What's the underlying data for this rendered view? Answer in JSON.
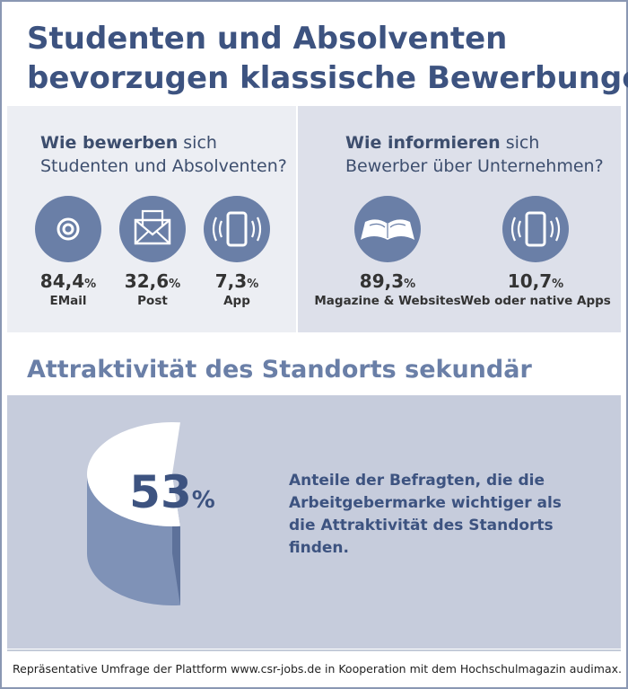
{
  "header": {
    "title_lines": [
      "Studenten und Absolventen",
      "bevorzugen klassische Bewerbungen"
    ]
  },
  "left": {
    "heading_bold": "Wie bewerben",
    "heading_rest": "sich",
    "heading_line2": "Studenten und Absolventen?",
    "stats": [
      {
        "value": "84,4",
        "unit": "%",
        "label": "EMail"
      },
      {
        "value": "32,6",
        "unit": "%",
        "label": "Post"
      },
      {
        "value": "7,3",
        "unit": "%",
        "label": "App"
      }
    ]
  },
  "right": {
    "heading_bold": "Wie informieren",
    "heading_rest": "sich",
    "heading_line2": "Bewerber über Unternehmen?",
    "stats": [
      {
        "value": "89,3",
        "unit": "%",
        "label": "Magazine & Websites"
      },
      {
        "value": "10,7",
        "unit": "%",
        "label": "Web oder native Apps"
      }
    ]
  },
  "section": {
    "title": "Attraktivität des Standorts sekundär",
    "pie_value": 53,
    "pie_unit": "%",
    "text_lines": [
      "Anteile der Befragten, die die",
      "Arbeitgebermarke wichtiger als",
      "die Attraktivität des Standorts",
      "finden."
    ]
  },
  "footer": "Repräsentative Umfrage der Plattform www.csr-jobs.de in Kooperation mit dem Hochschulmagazin audimax."
}
